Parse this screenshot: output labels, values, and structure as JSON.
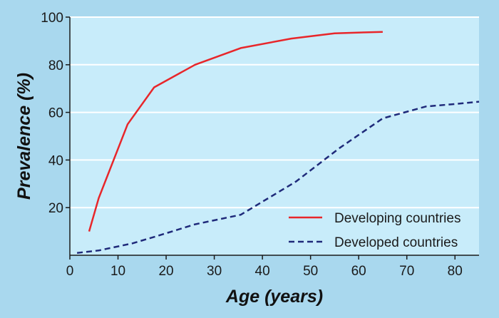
{
  "chart_data": {
    "type": "line",
    "xlabel": "Age (years)",
    "ylabel": "Prevalence (%)",
    "xlim": [
      0,
      85
    ],
    "ylim": [
      0,
      100
    ],
    "x_ticks": [
      0,
      10,
      20,
      30,
      40,
      50,
      60,
      70,
      80
    ],
    "y_ticks": [
      20,
      40,
      60,
      80,
      100
    ],
    "grid": "horizontal",
    "legend_position": "bottom-right",
    "series": [
      {
        "name": "Developing countries",
        "style": "solid",
        "color": "#e8262a",
        "points": [
          [
            4,
            10
          ],
          [
            6,
            24
          ],
          [
            12,
            55
          ],
          [
            17.5,
            70.5
          ],
          [
            26,
            80
          ],
          [
            35.5,
            87
          ],
          [
            46,
            91
          ],
          [
            55,
            93.2
          ],
          [
            65,
            93.8
          ]
        ]
      },
      {
        "name": "Developed countries",
        "style": "dashed",
        "color": "#1f2a7a",
        "points": [
          [
            1.5,
            1
          ],
          [
            6,
            2
          ],
          [
            13,
            5
          ],
          [
            18,
            8
          ],
          [
            26,
            13
          ],
          [
            35.5,
            17
          ],
          [
            47,
            31
          ],
          [
            56,
            45
          ],
          [
            65,
            57.5
          ],
          [
            74,
            62.5
          ],
          [
            80,
            63.5
          ],
          [
            85,
            64.5
          ]
        ]
      }
    ]
  },
  "colors": {
    "background": "#a9d8ee",
    "plot_background": "#c8ecfa",
    "gridline": "#ffffff",
    "axis": "#1a1a1a"
  }
}
